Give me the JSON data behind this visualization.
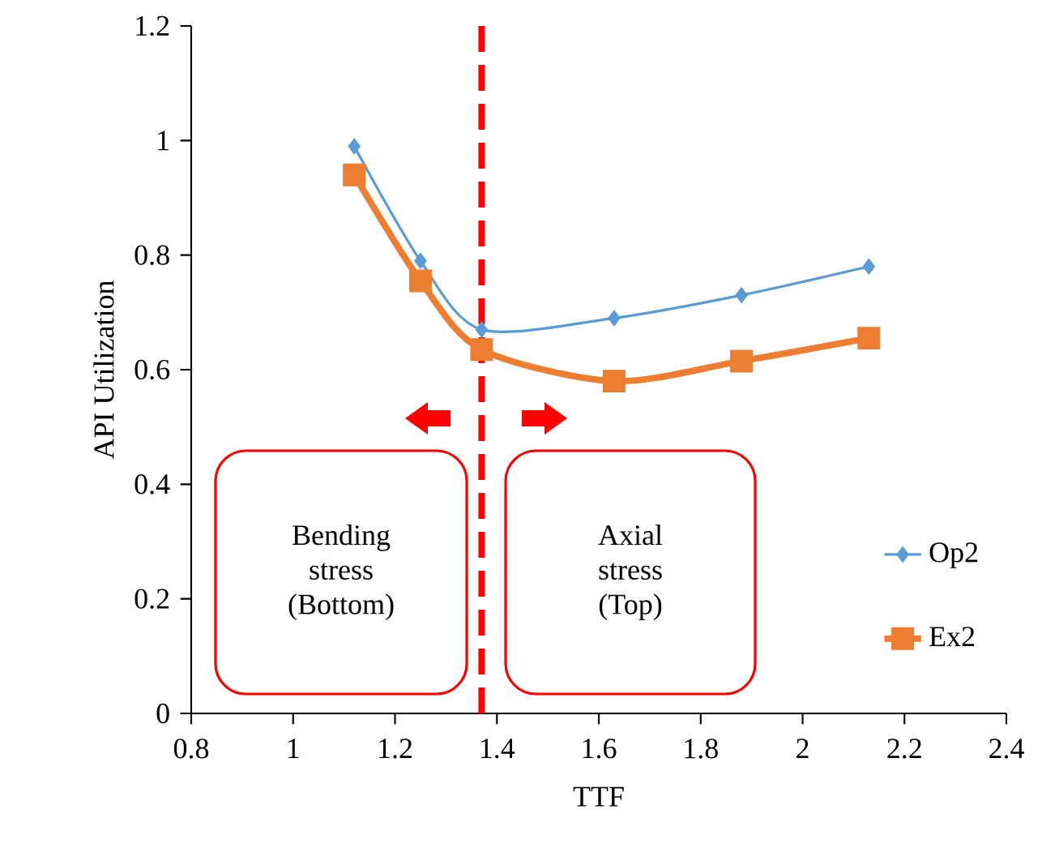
{
  "chart_data": {
    "type": "line",
    "xlabel": "TTF",
    "ylabel": "API Utilization",
    "xlim": [
      0.8,
      2.4
    ],
    "xticks": [
      0.8,
      1,
      1.2,
      1.4,
      1.6,
      1.8,
      2,
      2.2,
      2.4
    ],
    "ylim": [
      0,
      1.2
    ],
    "yticks": [
      0,
      0.2,
      0.4,
      0.6,
      0.8,
      1,
      1.2
    ],
    "legend": "right",
    "series": [
      {
        "name": "Op2",
        "color": "#5b9bd5",
        "marker": "diamond",
        "x": [
          1.12,
          1.25,
          1.37,
          1.63,
          1.88,
          2.13
        ],
        "values": [
          0.99,
          0.79,
          0.67,
          0.69,
          0.73,
          0.78
        ]
      },
      {
        "name": "Ex2",
        "color": "#ed7d31",
        "marker": "square",
        "x": [
          1.12,
          1.25,
          1.37,
          1.63,
          1.88,
          2.13
        ],
        "values": [
          0.94,
          0.755,
          0.635,
          0.58,
          0.615,
          0.655
        ]
      }
    ],
    "ref_lines": [
      {
        "axis": "x",
        "value": 1.37,
        "color": "#ff0000",
        "line_style": "dashed"
      }
    ],
    "annotations": [
      "Bending stress (Bottom)",
      "Axial stress (Top)"
    ]
  }
}
